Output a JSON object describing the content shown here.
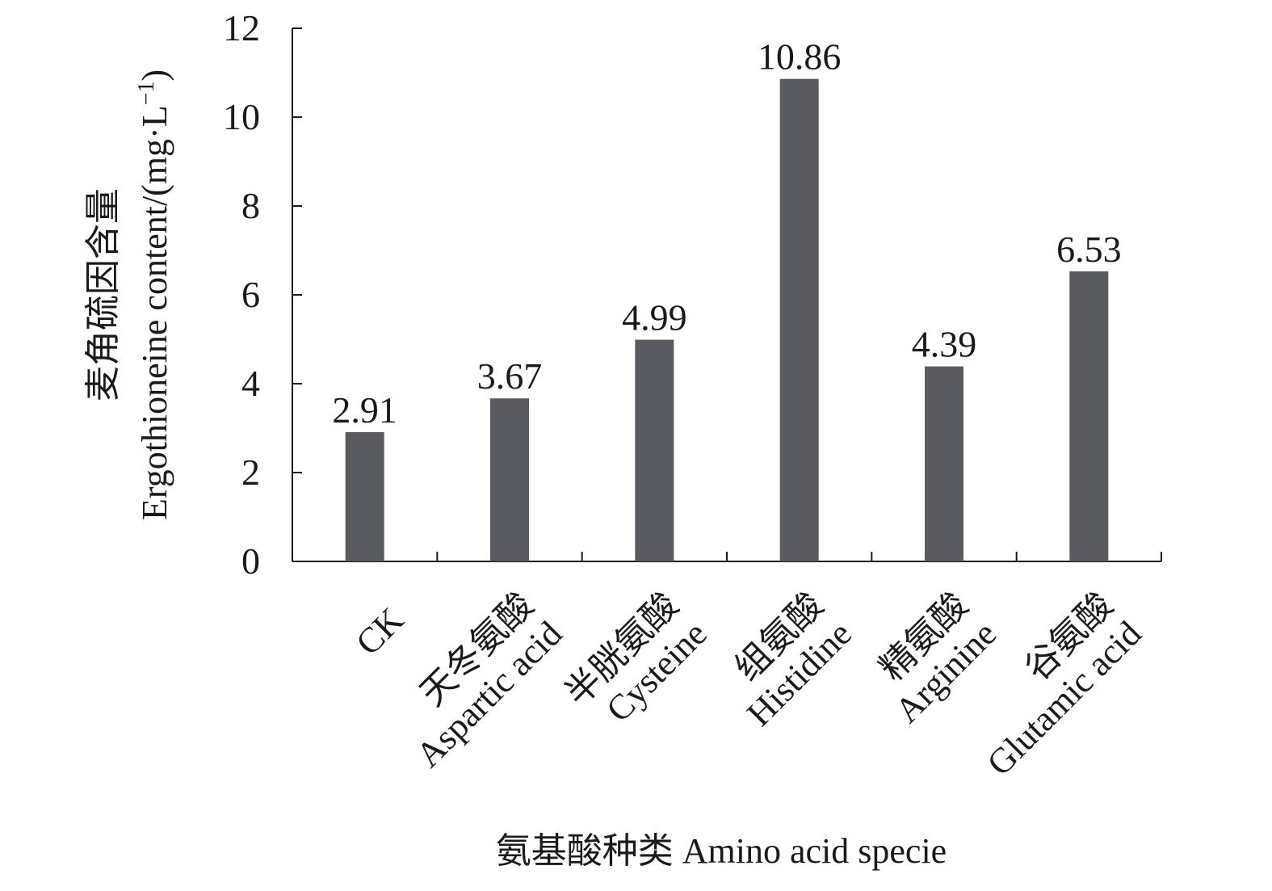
{
  "chart_data": {
    "type": "bar",
    "categories": [
      {
        "zh": "",
        "en": "CK"
      },
      {
        "zh": "天冬氨酸",
        "en": "Aspartic acid"
      },
      {
        "zh": "半胱氨酸",
        "en": "Cysteine"
      },
      {
        "zh": "组氨酸",
        "en": "Histidine"
      },
      {
        "zh": "精氨酸",
        "en": "Arginine"
      },
      {
        "zh": "谷氨酸",
        "en": "Glutamic acid"
      }
    ],
    "values": [
      2.91,
      3.67,
      4.99,
      10.86,
      4.39,
      6.53
    ],
    "value_labels": [
      "2.91",
      "3.67",
      "4.99",
      "10.86",
      "4.39",
      "6.53"
    ],
    "ylim": [
      0,
      12
    ],
    "yticks": [
      0,
      2,
      4,
      6,
      8,
      10,
      12
    ],
    "ylabel_zh": "麦角硫因含量",
    "ylabel_en_prefix": "Ergothioneine content/(mg·L",
    "ylabel_en_sup": "−1",
    "ylabel_en_suffix": ")",
    "xlabel": "氨基酸种类 Amino acid specie",
    "bar_color": "#5a5b60",
    "axis_color": "#1a1a1a",
    "grid": false,
    "legend": "none"
  }
}
